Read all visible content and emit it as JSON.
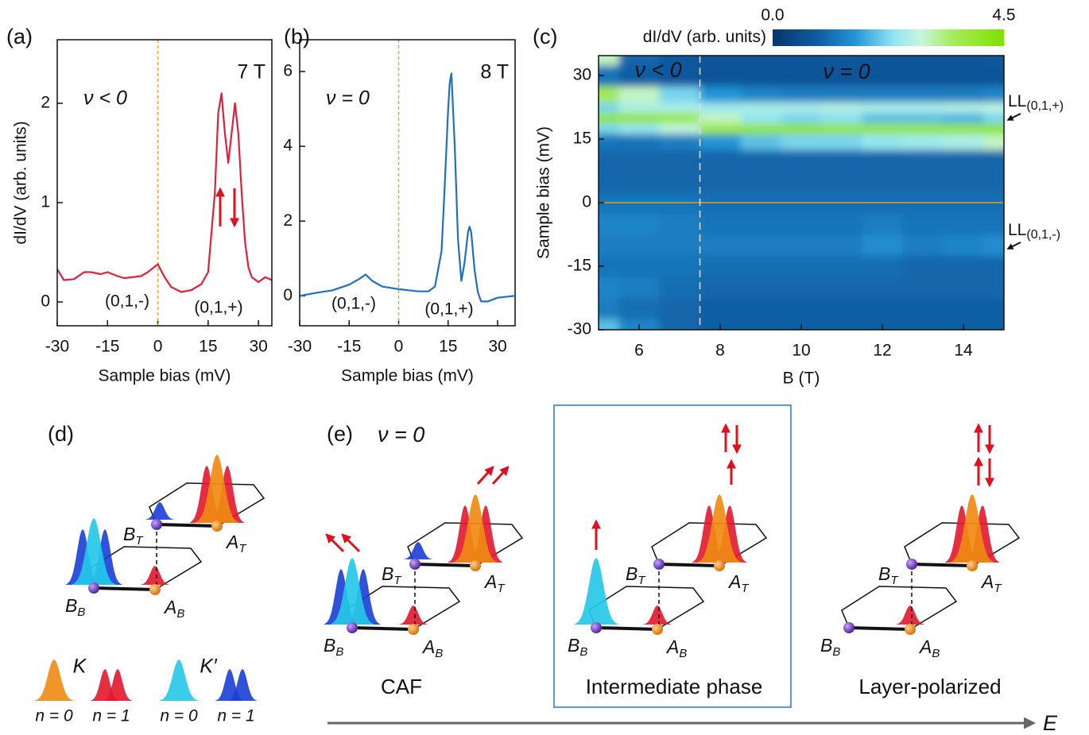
{
  "chart_data": [
    {
      "type": "line",
      "panel_label": "(a)",
      "field_label": "7 T",
      "filling_label": "ν < 0",
      "xlabel": "Sample bias (mV)",
      "ylabel": "dI/dV (arb. units)",
      "x": [
        -30,
        -28,
        -25,
        -22,
        -20,
        -17,
        -15,
        -12,
        -10,
        -5,
        -3,
        0,
        2,
        4,
        7,
        10,
        13,
        15,
        17,
        18,
        19,
        20,
        21,
        22,
        23,
        24,
        25,
        26,
        27,
        28,
        30,
        32,
        34
      ],
      "values": [
        0.33,
        0.22,
        0.23,
        0.3,
        0.3,
        0.28,
        0.3,
        0.26,
        0.24,
        0.26,
        0.3,
        0.38,
        0.25,
        0.15,
        0.1,
        0.12,
        0.18,
        0.3,
        1.1,
        1.9,
        2.1,
        1.7,
        1.4,
        1.7,
        2.0,
        1.7,
        1.1,
        0.6,
        0.35,
        0.25,
        0.2,
        0.25,
        0.22
      ],
      "color": "#e0203c",
      "xlim": [
        -30,
        34
      ],
      "ylim": [
        -0.24,
        2.64
      ],
      "xticks": [
        -30,
        -15,
        0,
        15,
        30
      ],
      "yticks": [
        0,
        1,
        2
      ],
      "vline": 0,
      "annotations": [
        "(0,1,-)",
        "(0,1,+)"
      ]
    },
    {
      "type": "line",
      "panel_label": "(b)",
      "field_label": "8 T",
      "filling_label": "ν = 0",
      "xlabel": "Sample bias (mV)",
      "x": [
        -30,
        -25,
        -20,
        -15,
        -12,
        -10,
        -8,
        -5,
        0,
        3,
        6,
        9,
        11,
        13,
        14,
        15,
        15.5,
        16,
        17,
        18,
        19,
        20,
        21,
        21.5,
        22,
        23,
        24,
        25,
        27,
        30,
        35
      ],
      "values": [
        0.0,
        0.08,
        0.15,
        0.3,
        0.45,
        0.57,
        0.4,
        0.25,
        0.18,
        0.15,
        0.12,
        0.12,
        0.25,
        1.2,
        3.0,
        5.0,
        5.7,
        5.95,
        4.0,
        1.5,
        0.4,
        0.9,
        1.7,
        1.85,
        1.7,
        0.7,
        0.1,
        -0.15,
        -0.15,
        -0.05,
        0.0
      ],
      "color": "#1f6fc5",
      "xlim": [
        -30,
        35.3
      ],
      "ylim": [
        -0.8,
        6.85
      ],
      "xticks": [
        -30,
        -15,
        0,
        15,
        30
      ],
      "yticks": [
        0,
        2,
        4,
        6
      ],
      "vline": 0,
      "annotations": [
        "(0,1,-)",
        "(0,1,+)"
      ]
    },
    {
      "type": "heatmap",
      "panel_label": "(c)",
      "xlabel": "B (T)",
      "ylabel": "Sample bias (mV)",
      "x": [
        5,
        6,
        7,
        8,
        9,
        10,
        11,
        12,
        13,
        14,
        15
      ],
      "y": [
        -30,
        -25,
        -20,
        -15,
        -10,
        -5,
        0,
        5,
        10,
        15,
        17.5,
        20,
        22.5,
        25,
        30,
        35
      ],
      "z": [
        [
          2.0,
          1.4,
          1.0,
          0.9,
          0.9,
          0.9,
          0.9,
          0.9,
          0.9,
          0.9,
          0.9
        ],
        [
          1.3,
          1.1,
          1.0,
          0.9,
          0.9,
          0.9,
          0.9,
          0.9,
          0.9,
          0.9,
          0.9
        ],
        [
          1.4,
          1.3,
          1.1,
          1.0,
          1.0,
          1.0,
          1.0,
          1.0,
          1.0,
          1.0,
          1.0
        ],
        [
          1.2,
          1.2,
          1.2,
          1.1,
          1.1,
          1.1,
          1.1,
          1.1,
          1.0,
          1.0,
          1.0
        ],
        [
          1.3,
          1.3,
          1.3,
          1.3,
          1.3,
          1.3,
          1.3,
          1.5,
          1.3,
          1.4,
          1.5
        ],
        [
          1.4,
          1.4,
          1.3,
          1.2,
          1.2,
          1.2,
          1.2,
          1.3,
          1.2,
          1.2,
          1.2
        ],
        [
          1.2,
          1.2,
          1.2,
          1.1,
          1.1,
          1.1,
          1.1,
          1.1,
          1.1,
          1.1,
          1.1
        ],
        [
          1.0,
          1.0,
          1.0,
          1.0,
          1.0,
          1.0,
          1.0,
          1.0,
          1.0,
          1.0,
          1.0
        ],
        [
          1.0,
          1.0,
          1.0,
          1.0,
          1.0,
          1.0,
          1.0,
          1.0,
          1.0,
          1.0,
          1.0
        ],
        [
          1.2,
          1.2,
          1.3,
          1.6,
          2.0,
          2.2,
          2.2,
          2.4,
          2.5,
          2.6,
          3.0
        ],
        [
          2.2,
          2.4,
          2.8,
          3.8,
          4.0,
          4.1,
          4.0,
          4.0,
          4.0,
          4.0,
          4.2
        ],
        [
          4.0,
          4.0,
          3.8,
          3.0,
          2.4,
          2.2,
          2.3,
          2.0,
          2.0,
          1.9,
          2.2
        ],
        [
          2.2,
          2.6,
          2.6,
          2.5,
          2.6,
          2.6,
          2.7,
          2.6,
          2.6,
          2.7,
          2.8
        ],
        [
          3.6,
          3.0,
          2.2,
          1.6,
          1.4,
          1.3,
          1.3,
          1.3,
          1.3,
          1.3,
          1.4
        ],
        [
          1.2,
          0.9,
          0.8,
          0.7,
          0.7,
          0.7,
          0.7,
          0.7,
          0.7,
          0.7,
          0.7
        ],
        [
          3.0,
          1.0,
          0.8,
          0.7,
          0.7,
          0.7,
          0.8,
          0.7,
          0.7,
          0.7,
          0.8
        ]
      ],
      "xlim": [
        5,
        15
      ],
      "ylim": [
        -30,
        34.7
      ],
      "xticks": [
        6,
        8,
        10,
        12,
        14
      ],
      "yticks": [
        -30,
        -15,
        0,
        15,
        30
      ],
      "vline": 7.5,
      "hline": 0,
      "colorbar": {
        "label": "dI/dV (arb. units)",
        "lim": [
          0,
          4.5
        ],
        "ticks": [
          {
            "value": 0,
            "label": "0.0"
          },
          {
            "value": 4.5,
            "label": "4.5"
          }
        ]
      },
      "annotations": [
        "ν < 0",
        "ν = 0"
      ],
      "level_labels": [
        {
          "text": "LL",
          "subscript": "(0,1,+)"
        },
        {
          "text": "LL",
          "subscript": "(0,1,-)"
        }
      ]
    }
  ],
  "diagram": {
    "d": {
      "panel_label": "(d)",
      "sites": [
        {
          "main": "B",
          "sub": "T"
        },
        {
          "main": "A",
          "sub": "T"
        },
        {
          "main": "B",
          "sub": "B"
        },
        {
          "main": "A",
          "sub": "B"
        }
      ],
      "valleys": [
        {
          "name": "K",
          "levels": [
            "n = 0",
            "n = 1"
          ]
        },
        {
          "name": "K′",
          "levels": [
            "n = 0",
            "n = 1"
          ]
        }
      ]
    },
    "e": {
      "panel_label": "(e)",
      "filling": "ν = 0",
      "axis_label": "E",
      "phases": [
        {
          "name": "CAF",
          "sites": [
            {
              "main": "B",
              "sub": "T"
            },
            {
              "main": "A",
              "sub": "T"
            },
            {
              "main": "B",
              "sub": "B"
            },
            {
              "main": "A",
              "sub": "B"
            }
          ]
        },
        {
          "name": "Intermediate phase",
          "sites": [
            {
              "main": "B",
              "sub": "T"
            },
            {
              "main": "A",
              "sub": "T"
            },
            {
              "main": "B",
              "sub": "B"
            },
            {
              "main": "A",
              "sub": "B"
            }
          ]
        },
        {
          "name": "Layer-polarized",
          "sites": [
            {
              "main": "B",
              "sub": "T"
            },
            {
              "main": "A",
              "sub": "T"
            },
            {
              "main": "B",
              "sub": "B"
            },
            {
              "main": "A",
              "sub": "B"
            }
          ]
        }
      ]
    }
  }
}
